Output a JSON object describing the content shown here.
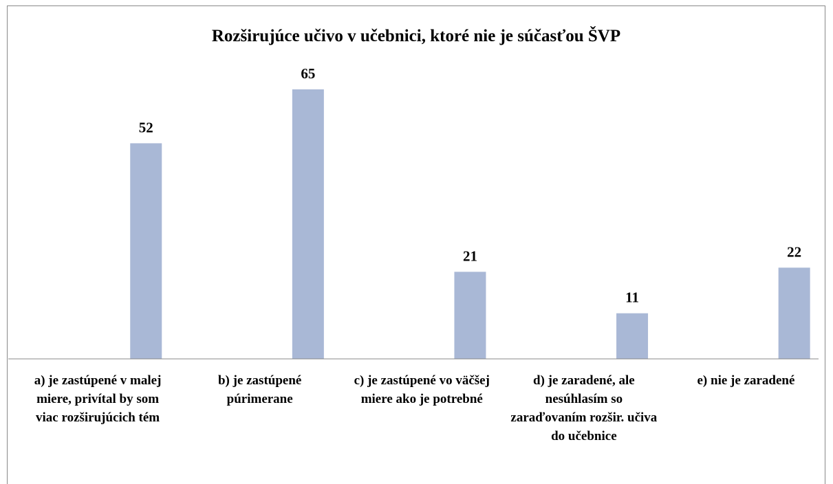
{
  "chart_data": {
    "type": "bar",
    "title": "Rozširujúce učivo v učebnici, ktoré nie je súčasťou ŠVP",
    "categories": [
      "a) je zastúpené v malej miere, privítal by som viac rozširujúcich tém",
      "b) je zastúpené púrimerane",
      "c) je zastúpené vo väčšej miere ako je potrebné",
      "d) je zaradené, ale nesúhlasím so zaraďovaním rozšir. učiva do učebnice",
      "e) nie je zaradené"
    ],
    "values": [
      52,
      65,
      21,
      11,
      22
    ],
    "color": "#a9b8d6"
  }
}
